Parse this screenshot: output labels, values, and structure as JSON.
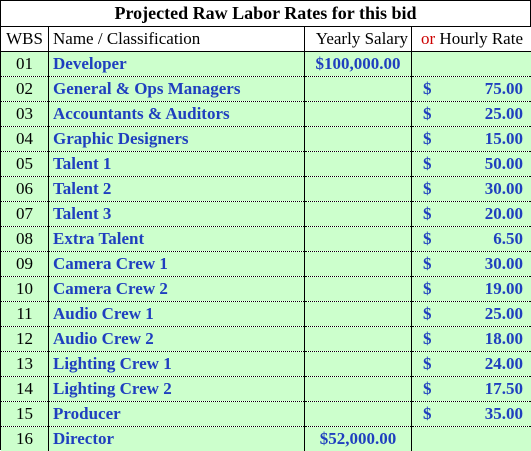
{
  "title": "Projected Raw Labor Rates for this bid",
  "headers": {
    "wbs": "WBS",
    "name": "Name / Classification",
    "salary": "Yearly Salary",
    "or": "or",
    "hourly": "Hourly Rate"
  },
  "rows": [
    {
      "wbs": "01",
      "name": "Developer",
      "salary": "$100,000.00",
      "currency": "",
      "rate": ""
    },
    {
      "wbs": "02",
      "name": "General & Ops Managers",
      "salary": "",
      "currency": "$",
      "rate": "75.00"
    },
    {
      "wbs": "03",
      "name": "Accountants & Auditors",
      "salary": "",
      "currency": "$",
      "rate": "25.00"
    },
    {
      "wbs": "04",
      "name": "Graphic Designers",
      "salary": "",
      "currency": "$",
      "rate": "15.00"
    },
    {
      "wbs": "05",
      "name": "Talent 1",
      "salary": "",
      "currency": "$",
      "rate": "50.00"
    },
    {
      "wbs": "06",
      "name": "Talent 2",
      "salary": "",
      "currency": "$",
      "rate": "30.00"
    },
    {
      "wbs": "07",
      "name": "Talent 3",
      "salary": "",
      "currency": "$",
      "rate": "20.00"
    },
    {
      "wbs": "08",
      "name": "Extra Talent",
      "salary": "",
      "currency": "$",
      "rate": "6.50"
    },
    {
      "wbs": "09",
      "name": "Camera Crew 1",
      "salary": "",
      "currency": "$",
      "rate": "30.00"
    },
    {
      "wbs": "10",
      "name": "Camera Crew 2",
      "salary": "",
      "currency": "$",
      "rate": "19.00"
    },
    {
      "wbs": "11",
      "name": "Audio Crew 1",
      "salary": "",
      "currency": "$",
      "rate": "25.00"
    },
    {
      "wbs": "12",
      "name": "Audio Crew 2",
      "salary": "",
      "currency": "$",
      "rate": "18.00"
    },
    {
      "wbs": "13",
      "name": "Lighting Crew 1",
      "salary": "",
      "currency": "$",
      "rate": "24.00"
    },
    {
      "wbs": "14",
      "name": "Lighting Crew 2",
      "salary": "",
      "currency": "$",
      "rate": "17.50"
    },
    {
      "wbs": "15",
      "name": "Producer",
      "salary": "",
      "currency": "$",
      "rate": "35.00"
    },
    {
      "wbs": "16",
      "name": "Director",
      "salary": "$52,000.00",
      "currency": "",
      "rate": ""
    }
  ],
  "colors": {
    "row_fill": "#ccffcc",
    "value_text": "#1f3fbf",
    "or_text": "#cc0000"
  }
}
